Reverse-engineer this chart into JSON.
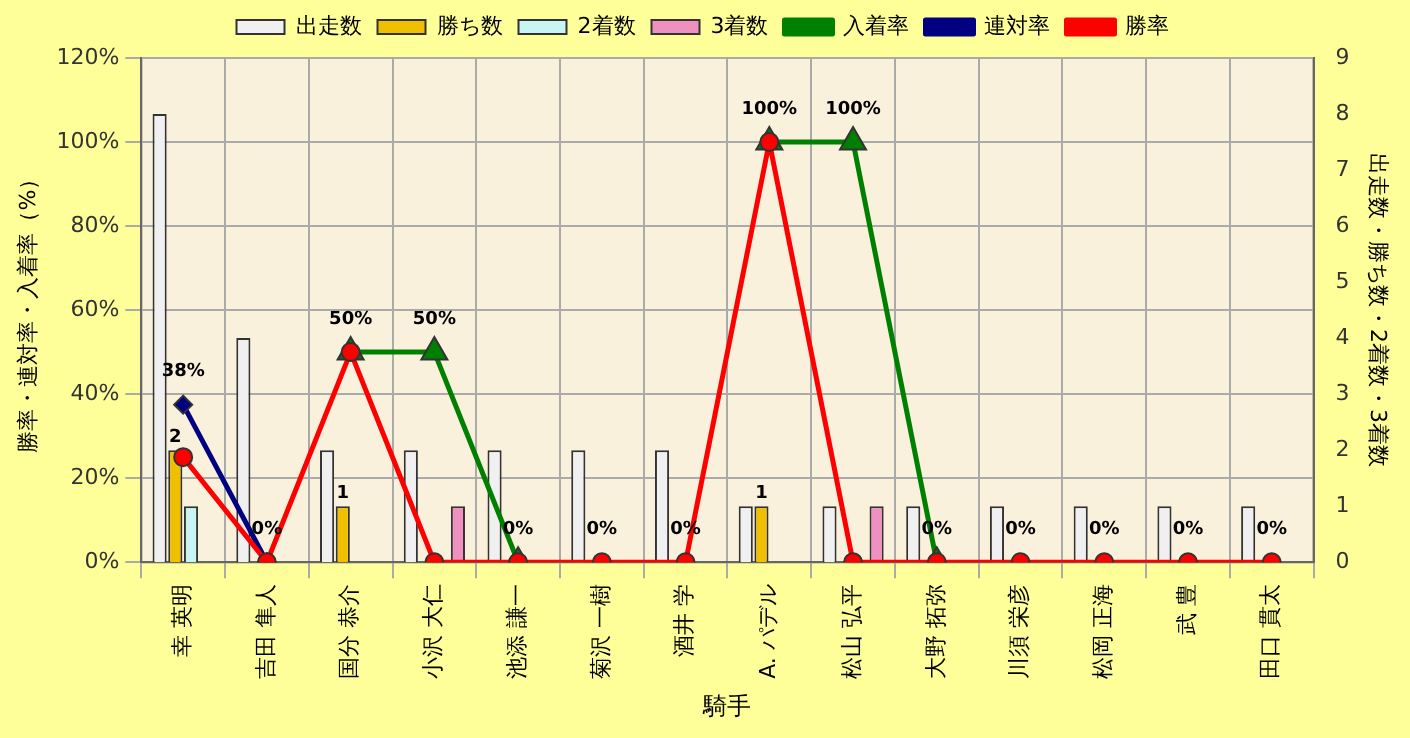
{
  "chart_data": {
    "type": "bar",
    "xlabel": "騎手",
    "ylabel": "勝率・連対率・入着率（%）",
    "y2label": "出走数・勝ち数・2着数・3着数",
    "categories": [
      "幸 英明",
      "吉田 隼人",
      "国分 恭介",
      "小沢 大仁",
      "池添 謙一",
      "菊沢 一樹",
      "酒井 学",
      "A. パデル",
      "松山 弘平",
      "大野 拓弥",
      "川須 栄彦",
      "松岡 正海",
      "武 豊",
      "田口 貫太"
    ],
    "series": [
      {
        "name": "出走数",
        "axis": "y2",
        "color": "#f0f0f0",
        "values": [
          8,
          4,
          2,
          2,
          2,
          2,
          2,
          1,
          1,
          1,
          1,
          1,
          1,
          1
        ]
      },
      {
        "name": "勝ち数",
        "axis": "y2",
        "color": "#f0c000",
        "values": [
          2,
          0,
          1,
          0,
          0,
          0,
          0,
          1,
          0,
          0,
          0,
          0,
          0,
          0
        ],
        "value_labels": [
          "2",
          null,
          "1",
          null,
          null,
          null,
          null,
          "1",
          null,
          null,
          null,
          null,
          null,
          null
        ]
      },
      {
        "name": "2着数",
        "axis": "y2",
        "color": "#c8f4f4",
        "values": [
          1,
          0,
          0,
          0,
          0,
          0,
          0,
          0,
          0,
          0,
          0,
          0,
          0,
          0
        ]
      },
      {
        "name": "3着数",
        "axis": "y2",
        "color": "#f090c0",
        "values": [
          0,
          0,
          0,
          1,
          0,
          0,
          0,
          0,
          1,
          0,
          0,
          0,
          0,
          0
        ]
      },
      {
        "name": "入着率",
        "type": "line",
        "color": "#008000",
        "marker": "triangle",
        "values": [
          null,
          null,
          50,
          50,
          0,
          null,
          null,
          100,
          100,
          0,
          null,
          null,
          null,
          null
        ],
        "value_labels": [
          null,
          null,
          "50%",
          "50%",
          "0%",
          null,
          null,
          "100%",
          "100%",
          "0%",
          null,
          null,
          null,
          null
        ]
      },
      {
        "name": "連対率",
        "type": "line",
        "color": "#000080",
        "marker": "diamond",
        "values": [
          37.5,
          0,
          null,
          null,
          null,
          null,
          null,
          null,
          null,
          null,
          null,
          null,
          null,
          null
        ],
        "value_labels": [
          "38%",
          null,
          null,
          null,
          null,
          null,
          null,
          null,
          null,
          null,
          null,
          null,
          null,
          null
        ]
      },
      {
        "name": "勝率",
        "type": "line",
        "color": "#ff0000",
        "marker": "circle",
        "values": [
          25,
          0,
          50,
          0,
          0,
          0,
          0,
          100,
          0,
          0,
          0,
          0,
          0,
          0
        ],
        "value_labels": [
          null,
          "0%",
          null,
          null,
          null,
          "0%",
          "0%",
          null,
          null,
          null,
          "0%",
          "0%",
          "0%",
          "0%"
        ]
      }
    ],
    "ylim": [
      0,
      120
    ],
    "yticks": [
      {
        "value": 0,
        "label": "0%"
      },
      {
        "value": 20,
        "label": "20%"
      },
      {
        "value": 40,
        "label": "40%"
      },
      {
        "value": 60,
        "label": "60%"
      },
      {
        "value": 80,
        "label": "80%"
      },
      {
        "value": 100,
        "label": "100%"
      },
      {
        "value": 120,
        "label": "120%"
      }
    ],
    "y2lim": [
      0,
      9
    ],
    "y2ticks": [
      0,
      1,
      2,
      3,
      4,
      5,
      6,
      7,
      8,
      9
    ],
    "grid": true,
    "legend": "top"
  }
}
